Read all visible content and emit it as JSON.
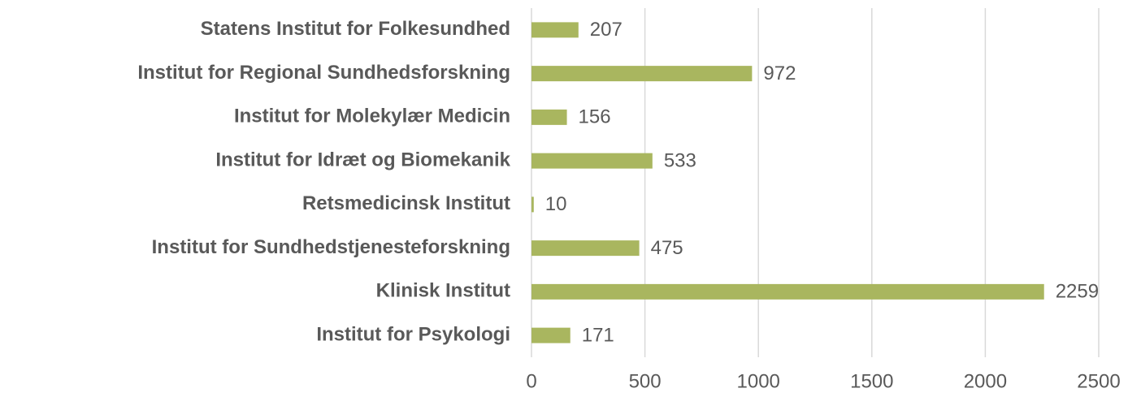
{
  "chart_data": {
    "type": "barh",
    "categories": [
      "Statens Institut for Folkesundhed",
      "Institut for Regional Sundhedsforskning",
      "Institut for Molekylær Medicin",
      "Institut for Idræt og Biomekanik",
      "Retsmedicinsk Institut",
      "Institut for Sundhedstjenesteforskning",
      "Klinisk Institut",
      "Institut for Psykologi"
    ],
    "values": [
      207,
      972,
      156,
      533,
      10,
      475,
      2259,
      171
    ],
    "color": "#a9b65f",
    "xlim": [
      0,
      2500
    ],
    "xticks": [
      0,
      500,
      1000,
      1500,
      2000,
      2500
    ],
    "grid": true
  }
}
